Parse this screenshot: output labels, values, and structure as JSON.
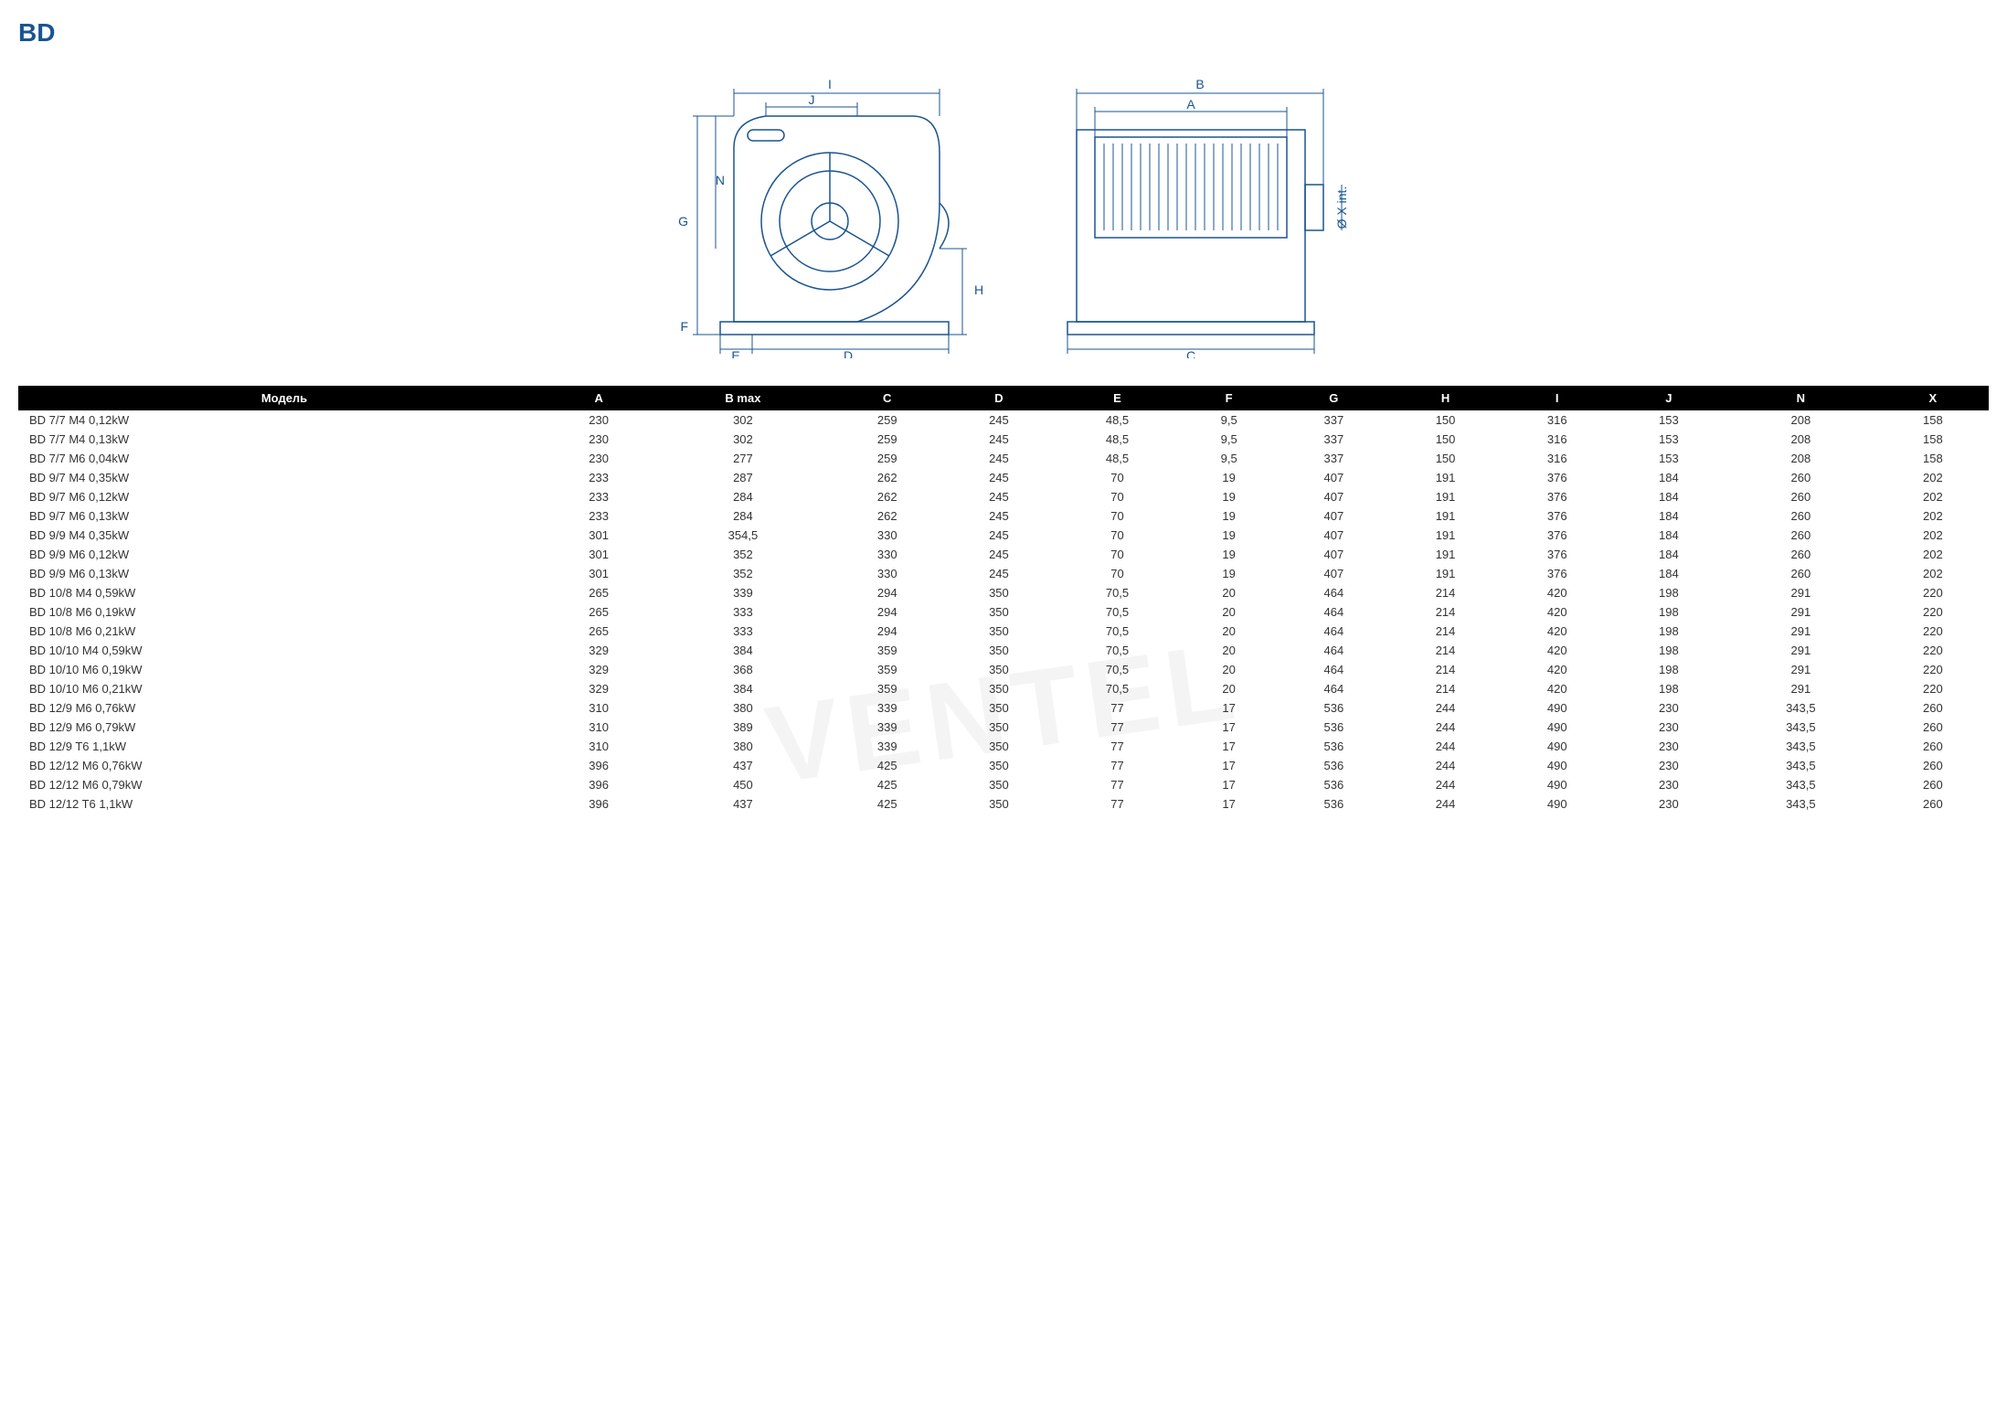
{
  "title": "BD",
  "watermark": "VENTEL",
  "diagram": {
    "labels": [
      "I",
      "J",
      "N",
      "G",
      "F",
      "E",
      "D",
      "H",
      "B",
      "A",
      "C",
      "Ø X int."
    ],
    "stroke": "#1a5490",
    "text_fontsize": 14
  },
  "table": {
    "columns": [
      "Модель",
      "A",
      "B max",
      "C",
      "D",
      "E",
      "F",
      "G",
      "H",
      "I",
      "J",
      "N",
      "X"
    ],
    "header_bg": "#000000",
    "header_fg": "#ffffff",
    "rows": [
      [
        "BD 7/7 M4 0,12kW",
        "230",
        "302",
        "259",
        "245",
        "48,5",
        "9,5",
        "337",
        "150",
        "316",
        "153",
        "208",
        "158"
      ],
      [
        "BD 7/7 M4 0,13kW",
        "230",
        "302",
        "259",
        "245",
        "48,5",
        "9,5",
        "337",
        "150",
        "316",
        "153",
        "208",
        "158"
      ],
      [
        "BD 7/7 M6 0,04kW",
        "230",
        "277",
        "259",
        "245",
        "48,5",
        "9,5",
        "337",
        "150",
        "316",
        "153",
        "208",
        "158"
      ],
      [
        "BD 9/7 M4 0,35kW",
        "233",
        "287",
        "262",
        "245",
        "70",
        "19",
        "407",
        "191",
        "376",
        "184",
        "260",
        "202"
      ],
      [
        "BD 9/7 M6 0,12kW",
        "233",
        "284",
        "262",
        "245",
        "70",
        "19",
        "407",
        "191",
        "376",
        "184",
        "260",
        "202"
      ],
      [
        "BD 9/7 M6 0,13kW",
        "233",
        "284",
        "262",
        "245",
        "70",
        "19",
        "407",
        "191",
        "376",
        "184",
        "260",
        "202"
      ],
      [
        "BD 9/9 M4 0,35kW",
        "301",
        "354,5",
        "330",
        "245",
        "70",
        "19",
        "407",
        "191",
        "376",
        "184",
        "260",
        "202"
      ],
      [
        "BD 9/9 M6 0,12kW",
        "301",
        "352",
        "330",
        "245",
        "70",
        "19",
        "407",
        "191",
        "376",
        "184",
        "260",
        "202"
      ],
      [
        "BD 9/9 M6 0,13kW",
        "301",
        "352",
        "330",
        "245",
        "70",
        "19",
        "407",
        "191",
        "376",
        "184",
        "260",
        "202"
      ],
      [
        "BD 10/8 M4 0,59kW",
        "265",
        "339",
        "294",
        "350",
        "70,5",
        "20",
        "464",
        "214",
        "420",
        "198",
        "291",
        "220"
      ],
      [
        "BD 10/8 M6 0,19kW",
        "265",
        "333",
        "294",
        "350",
        "70,5",
        "20",
        "464",
        "214",
        "420",
        "198",
        "291",
        "220"
      ],
      [
        "BD 10/8 M6 0,21kW",
        "265",
        "333",
        "294",
        "350",
        "70,5",
        "20",
        "464",
        "214",
        "420",
        "198",
        "291",
        "220"
      ],
      [
        "BD 10/10 M4 0,59kW",
        "329",
        "384",
        "359",
        "350",
        "70,5",
        "20",
        "464",
        "214",
        "420",
        "198",
        "291",
        "220"
      ],
      [
        "BD 10/10 M6 0,19kW",
        "329",
        "368",
        "359",
        "350",
        "70,5",
        "20",
        "464",
        "214",
        "420",
        "198",
        "291",
        "220"
      ],
      [
        "BD 10/10 M6 0,21kW",
        "329",
        "384",
        "359",
        "350",
        "70,5",
        "20",
        "464",
        "214",
        "420",
        "198",
        "291",
        "220"
      ],
      [
        "BD 12/9 M6 0,76kW",
        "310",
        "380",
        "339",
        "350",
        "77",
        "17",
        "536",
        "244",
        "490",
        "230",
        "343,5",
        "260"
      ],
      [
        "BD 12/9 M6 0,79kW",
        "310",
        "389",
        "339",
        "350",
        "77",
        "17",
        "536",
        "244",
        "490",
        "230",
        "343,5",
        "260"
      ],
      [
        "BD 12/9 T6 1,1kW",
        "310",
        "380",
        "339",
        "350",
        "77",
        "17",
        "536",
        "244",
        "490",
        "230",
        "343,5",
        "260"
      ],
      [
        "BD 12/12 M6 0,76kW",
        "396",
        "437",
        "425",
        "350",
        "77",
        "17",
        "536",
        "244",
        "490",
        "230",
        "343,5",
        "260"
      ],
      [
        "BD 12/12 M6 0,79kW",
        "396",
        "450",
        "425",
        "350",
        "77",
        "17",
        "536",
        "244",
        "490",
        "230",
        "343,5",
        "260"
      ],
      [
        "BD 12/12 T6 1,1kW",
        "396",
        "437",
        "425",
        "350",
        "77",
        "17",
        "536",
        "244",
        "490",
        "230",
        "343,5",
        "260"
      ]
    ]
  }
}
